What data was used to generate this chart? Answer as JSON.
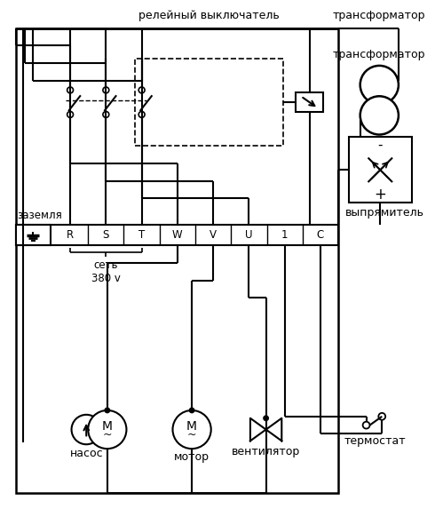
{
  "background_color": "#ffffff",
  "line_color": "#000000",
  "labels": {
    "relay": "релейный выключатель",
    "transformer": "трансформатор",
    "ground_label": "заземля",
    "rectifier": "выпрямитель",
    "network": "сеть\n380 v",
    "pump": "насос",
    "motor": "мотор",
    "fan": "вентилятор",
    "thermostat": "термостат",
    "terminals": [
      "R",
      "S",
      "T",
      "W",
      "V",
      "U",
      "1",
      "C"
    ],
    "minus": "-",
    "plus": "+"
  },
  "figsize": [
    4.9,
    5.82
  ],
  "dpi": 100
}
